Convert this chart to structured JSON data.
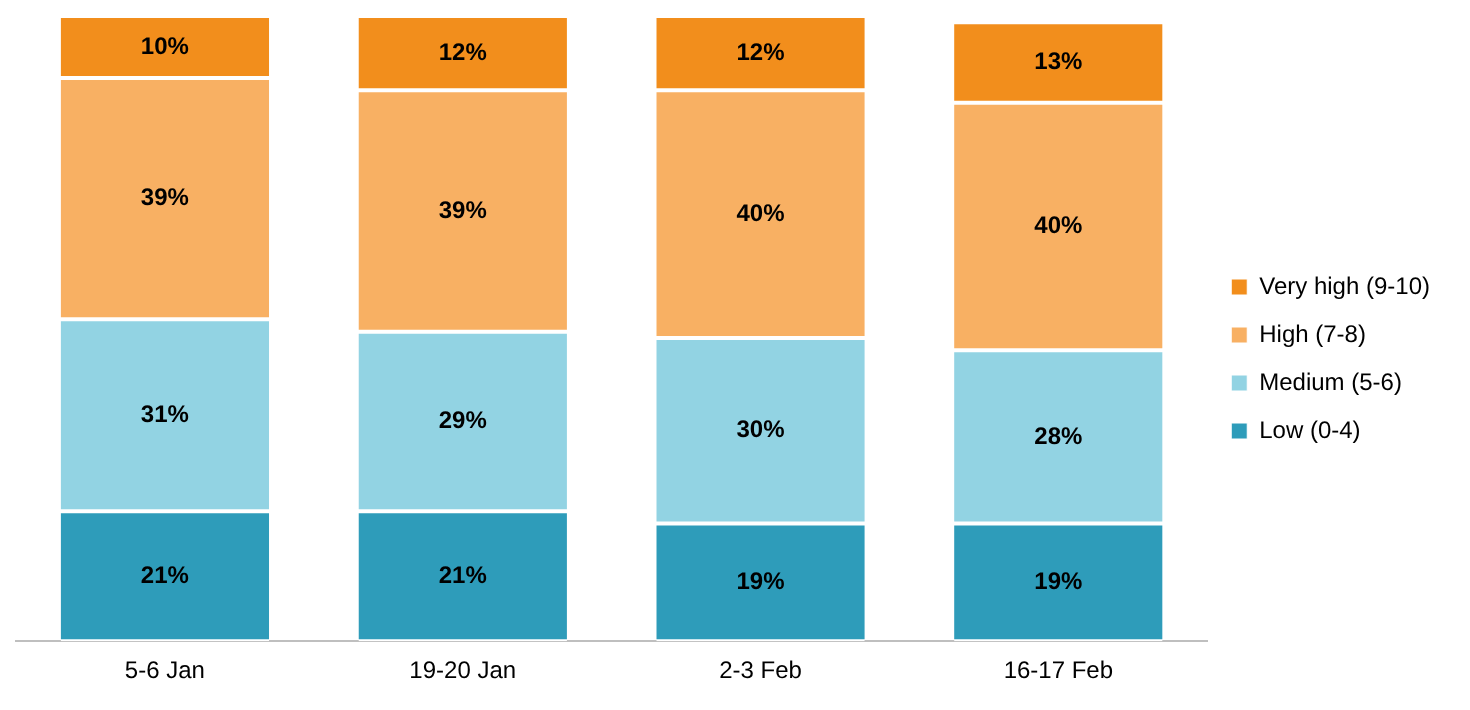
{
  "chart_data": {
    "type": "bar",
    "stacked": true,
    "legend": "right",
    "categories": [
      "5-6 Jan",
      "19-20 Jan",
      "2-3 Feb",
      "16-17 Feb"
    ],
    "series": [
      {
        "name": "Low (0-4)",
        "color": "#2e9cba",
        "values": [
          21,
          21,
          19,
          19
        ],
        "value_labels": [
          "21%",
          "21%",
          "19%",
          "19%"
        ]
      },
      {
        "name": "Medium (5-6)",
        "color": "#92d3e3",
        "values": [
          31,
          29,
          30,
          28
        ],
        "value_labels": [
          "31%",
          "29%",
          "30%",
          "28%"
        ]
      },
      {
        "name": "High (7-8)",
        "color": "#f8b063",
        "values": [
          39,
          39,
          40,
          40
        ],
        "value_labels": [
          "39%",
          "39%",
          "40%",
          "40%"
        ]
      },
      {
        "name": "Very high (9-10)",
        "color": "#f28e1c",
        "values": [
          10,
          12,
          12,
          13
        ],
        "value_labels": [
          "10%",
          "12%",
          "12%",
          "13%"
        ]
      }
    ]
  }
}
